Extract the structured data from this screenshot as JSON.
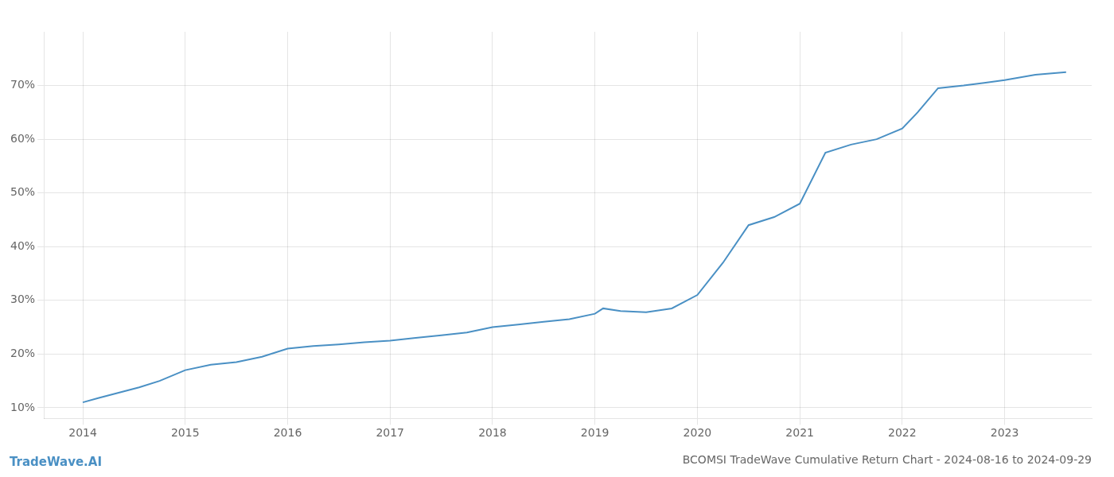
{
  "chart_data": {
    "type": "line",
    "title": "BCOMSI TradeWave Cumulative Return Chart - 2024-08-16 to 2024-09-29",
    "annotations": [
      "TradeWave.AI"
    ],
    "color": "#4a90c4",
    "grid": true,
    "x": [
      2014.0,
      2014.15,
      2014.35,
      2014.55,
      2014.75,
      2015.0,
      2015.25,
      2015.5,
      2015.75,
      2016.0,
      2016.25,
      2016.5,
      2016.75,
      2017.0,
      2017.25,
      2017.5,
      2017.75,
      2018.0,
      2018.25,
      2018.5,
      2018.75,
      2019.0,
      2019.08,
      2019.25,
      2019.5,
      2019.75,
      2020.0,
      2020.25,
      2020.5,
      2020.75,
      2021.0,
      2021.25,
      2021.5,
      2021.75,
      2022.0,
      2022.15,
      2022.35,
      2022.6,
      2022.8,
      2023.0,
      2023.3,
      2023.6
    ],
    "values": [
      11.0,
      11.8,
      12.8,
      13.8,
      15.0,
      17.0,
      18.0,
      18.5,
      19.5,
      21.0,
      21.5,
      21.8,
      22.2,
      22.5,
      23.0,
      23.5,
      24.0,
      25.0,
      25.5,
      26.0,
      26.5,
      27.5,
      28.5,
      28.0,
      27.8,
      28.5,
      31.0,
      37.0,
      44.0,
      45.5,
      48.0,
      57.5,
      59.0,
      60.0,
      62.0,
      65.0,
      69.5,
      70.0,
      70.5,
      71.0,
      72.0,
      72.5
    ],
    "xlim": [
      2013.62,
      2023.85
    ],
    "xticks": [
      2014,
      2015,
      2016,
      2017,
      2018,
      2019,
      2020,
      2021,
      2022,
      2023
    ],
    "ylim": [
      8,
      80
    ],
    "yticks": [
      {
        "value": 10,
        "label": "10%"
      },
      {
        "value": 20,
        "label": "20%"
      },
      {
        "value": 30,
        "label": "30%"
      },
      {
        "value": 40,
        "label": "40%"
      },
      {
        "value": 50,
        "label": "50%"
      },
      {
        "value": 60,
        "label": "60%"
      },
      {
        "value": 70,
        "label": "70%"
      }
    ]
  }
}
